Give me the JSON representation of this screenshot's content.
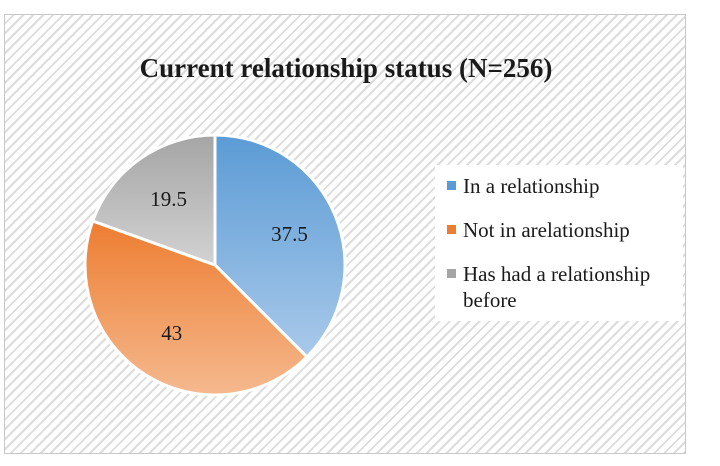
{
  "chart_data": {
    "type": "pie",
    "title": "Current relationship status (N=256)",
    "slices": [
      {
        "label": "In a relationship",
        "value": 37.5,
        "value_label": "37.5",
        "color": "#5b9bd5",
        "color_light": "#a9c9ea"
      },
      {
        "label": "Not in arelationship",
        "value": 43,
        "value_label": "43",
        "color": "#ed7d31",
        "color_light": "#f5b98e"
      },
      {
        "label": "Has had a relationship before",
        "value": 19.5,
        "value_label": "19.5",
        "color": "#a5a5a5",
        "color_light": "#d2d2d2"
      }
    ],
    "legend_position": "right"
  }
}
